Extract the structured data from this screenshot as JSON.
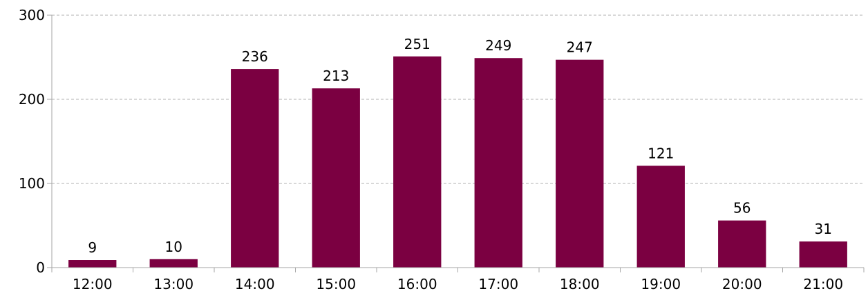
{
  "colors": {
    "bar": "#7b0041",
    "grid": "#b0b0b0",
    "axis": "#a6a6a6",
    "text": "#000000"
  },
  "chart_data": {
    "type": "bar",
    "categories": [
      "12:00",
      "13:00",
      "14:00",
      "15:00",
      "16:00",
      "17:00",
      "18:00",
      "19:00",
      "20:00",
      "21:00"
    ],
    "values": [
      9,
      10,
      236,
      213,
      251,
      249,
      247,
      121,
      56,
      31
    ],
    "data_labels": [
      "9",
      "10",
      "236",
      "213",
      "251",
      "249",
      "247",
      "121",
      "56",
      "31"
    ],
    "yticks": [
      0,
      100,
      200,
      300
    ],
    "ylim": [
      0,
      300
    ],
    "grid": true,
    "grid_style": "dashed",
    "legend": "none",
    "title": "",
    "xlabel": "",
    "ylabel": ""
  }
}
